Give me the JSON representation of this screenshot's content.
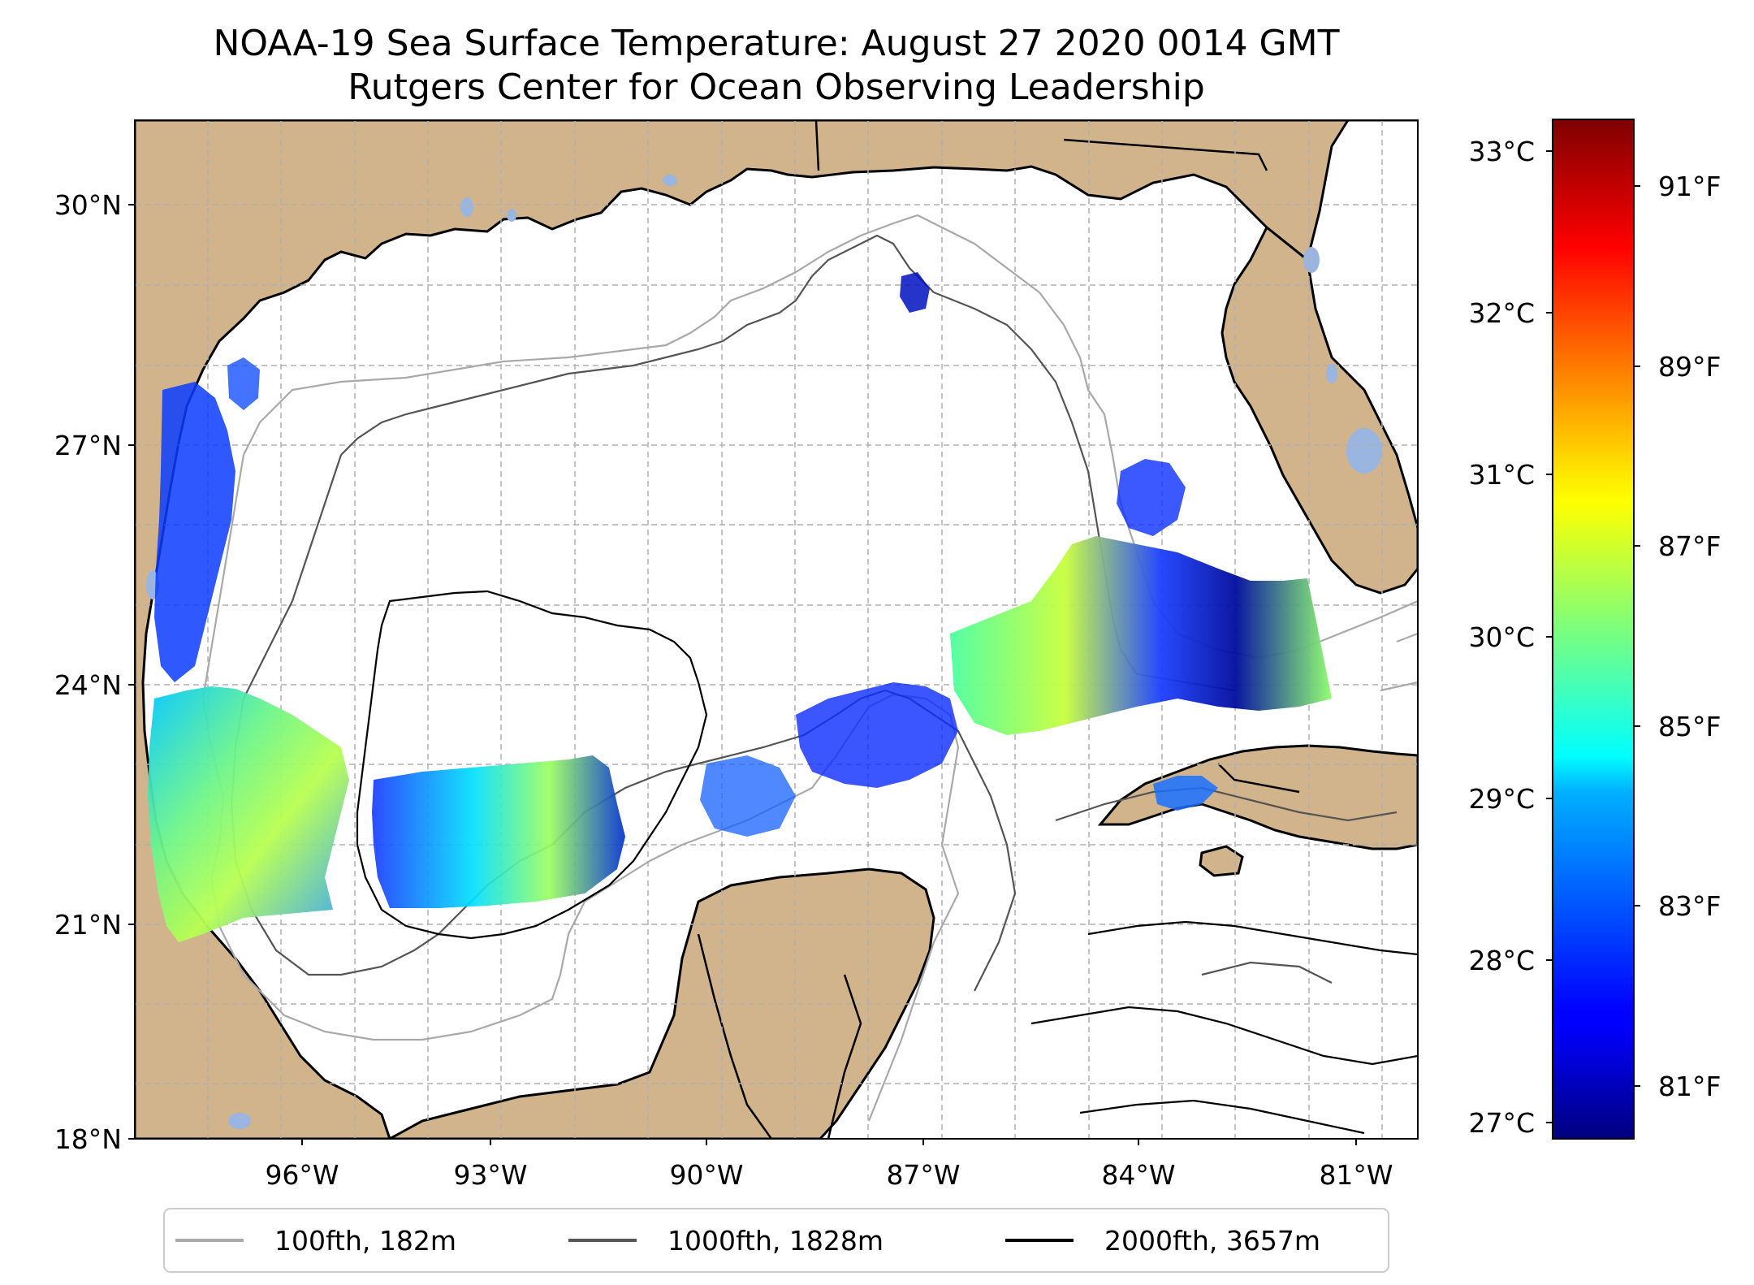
{
  "title": {
    "line1": "NOAA-19 Sea Surface Temperature: August 27 2020 0014 GMT",
    "line2": "Rutgers Center for Ocean Observing Leadership"
  },
  "map": {
    "lon_range": [
      -98.0,
      -80.5
    ],
    "lat_range": [
      18.0,
      31.0
    ],
    "lat_ticks": [
      {
        "value": 30,
        "label": "30°N"
      },
      {
        "value": 27,
        "label": "27°N"
      },
      {
        "value": 24,
        "label": "24°N"
      },
      {
        "value": 21,
        "label": "21°N"
      },
      {
        "value": 18,
        "label": "18°N"
      }
    ],
    "lon_ticks": [
      {
        "value": -96,
        "label": "96°W"
      },
      {
        "value": -93,
        "label": "93°W"
      },
      {
        "value": -90,
        "label": "90°W"
      },
      {
        "value": -87,
        "label": "87°W"
      },
      {
        "value": -84,
        "label": "84°W"
      },
      {
        "value": -81,
        "label": "81°W"
      }
    ],
    "colors": {
      "land": "#d2b48c",
      "ocean": "#ffffff",
      "lakes": "#9ab5e0",
      "grid": "#b0b0b0"
    }
  },
  "colorbar": {
    "colormap": "jet",
    "range_c": [
      26.9,
      33.2
    ],
    "celsius_ticks": [
      {
        "value": 33,
        "label": "33°C"
      },
      {
        "value": 32,
        "label": "32°C"
      },
      {
        "value": 31,
        "label": "31°C"
      },
      {
        "value": 30,
        "label": "30°C"
      },
      {
        "value": 29,
        "label": "29°C"
      },
      {
        "value": 28,
        "label": "28°C"
      },
      {
        "value": 27,
        "label": "27°C"
      }
    ],
    "fahrenheit_ticks": [
      {
        "value": 91,
        "label": "91°F"
      },
      {
        "value": 89,
        "label": "89°F"
      },
      {
        "value": 87,
        "label": "87°F"
      },
      {
        "value": 85,
        "label": "85°F"
      },
      {
        "value": 83,
        "label": "83°F"
      },
      {
        "value": 81,
        "label": "81°F"
      }
    ]
  },
  "legend": {
    "items": [
      {
        "label": "100fth, 182m",
        "color": "#a9a9a9"
      },
      {
        "label": "1000fth, 1828m",
        "color": "#555555"
      },
      {
        "label": "2000fth, 3657m",
        "color": "#000000"
      }
    ]
  }
}
